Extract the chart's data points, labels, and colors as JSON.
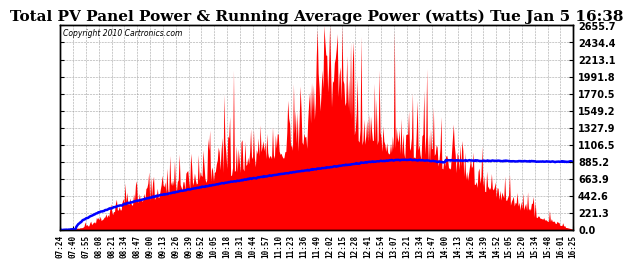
{
  "title": "Total PV Panel Power & Running Average Power (watts) Tue Jan 5 16:38",
  "copyright": "Copyright 2010 Cartronics.com",
  "ymax": 2655.7,
  "ymin": 0.0,
  "yticks": [
    0.0,
    221.3,
    442.6,
    663.9,
    885.2,
    1106.5,
    1327.9,
    1549.2,
    1770.5,
    1991.8,
    2213.1,
    2434.4,
    2655.7
  ],
  "background_color": "#ffffff",
  "fill_color": "#ff0000",
  "line_color": "#0000ff",
  "grid_color": "#aaaaaa",
  "title_fontsize": 11,
  "xtick_labels": [
    "07:24",
    "07:40",
    "07:55",
    "08:08",
    "08:21",
    "08:34",
    "08:47",
    "09:00",
    "09:13",
    "09:26",
    "09:39",
    "09:52",
    "10:05",
    "10:18",
    "10:31",
    "10:44",
    "10:57",
    "11:10",
    "11:23",
    "11:36",
    "11:49",
    "12:02",
    "12:15",
    "12:28",
    "12:41",
    "12:54",
    "13:07",
    "13:21",
    "13:34",
    "13:47",
    "14:00",
    "14:13",
    "14:26",
    "14:39",
    "14:52",
    "15:05",
    "15:20",
    "15:34",
    "15:48",
    "16:01",
    "16:25"
  ],
  "num_points": 540
}
